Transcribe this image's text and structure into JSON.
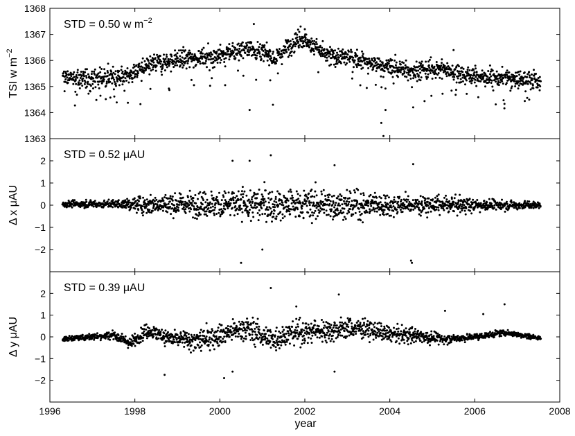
{
  "chart_data": [
    {
      "type": "scatter",
      "ylabel_main": "TSI  w m",
      "ylabel_sup": "−2",
      "annotation_main": "STD = 0.50 w m",
      "annotation_sup": "−2",
      "xlim": [
        1996,
        2008
      ],
      "ylim": [
        1363,
        1368
      ],
      "yticks": [
        "1363",
        "1364",
        "1365",
        "1366",
        "1367",
        "1368"
      ],
      "trend": {
        "x": [
          1996.3,
          1997.0,
          1997.8,
          1998.5,
          1999.3,
          2000.0,
          2000.7,
          2001.3,
          2001.9,
          2002.5,
          2003.1,
          2003.8,
          2004.5,
          2005.2,
          2006.0,
          2006.8,
          2007.55
        ],
        "y": [
          1365.3,
          1365.3,
          1365.4,
          1365.9,
          1366.1,
          1366.2,
          1366.5,
          1366.1,
          1366.9,
          1366.2,
          1366.1,
          1365.8,
          1365.6,
          1365.7,
          1365.4,
          1365.3,
          1365.2
        ]
      },
      "noise": 0.3,
      "dips": [
        [
          2000.7,
          1364.1
        ],
        [
          2001.25,
          1364.3
        ],
        [
          2003.8,
          1363.6
        ],
        [
          2003.85,
          1363.1
        ],
        [
          2004.55,
          1364.2
        ],
        [
          2003.9,
          1364.1
        ]
      ],
      "highs": [
        [
          2000.8,
          1367.4
        ],
        [
          2001.9,
          1367.3
        ],
        [
          2002.0,
          1367.2
        ],
        [
          2005.5,
          1366.4
        ]
      ]
    },
    {
      "type": "scatter",
      "ylabel_main": "Δ x  μAU",
      "annotation_main": "STD = 0.52 μAU",
      "xlim": [
        1996,
        2008
      ],
      "ylim": [
        -3,
        3
      ],
      "yticks": [
        "−2",
        "−1",
        "0",
        "1",
        "2"
      ],
      "yticks_values": [
        -2,
        -1,
        0,
        1,
        2
      ],
      "trend": {
        "x": [
          1996.3,
          2007.55
        ],
        "y": [
          0.05,
          0.0
        ]
      },
      "spread": {
        "x": [
          1996.3,
          1997.7,
          1998.2,
          1999.5,
          2000.5,
          2001.5,
          2002.5,
          2003.5,
          2004.5,
          2005.5,
          2006.5,
          2007.55
        ],
        "y": [
          0.12,
          0.15,
          0.35,
          0.45,
          0.65,
          0.6,
          0.55,
          0.5,
          0.35,
          0.3,
          0.2,
          0.12
        ]
      },
      "highs": [
        [
          2000.3,
          2.0
        ],
        [
          2000.7,
          2.0
        ],
        [
          2001.2,
          2.25
        ],
        [
          2004.55,
          1.85
        ],
        [
          2002.7,
          1.8
        ]
      ],
      "dips": [
        [
          2000.5,
          -2.6
        ],
        [
          2004.5,
          -2.5
        ],
        [
          2004.52,
          -2.6
        ],
        [
          2001.0,
          -2.0
        ]
      ]
    },
    {
      "type": "scatter",
      "ylabel_main": "Δ y  μAU",
      "annotation_main": "STD = 0.39 μAU",
      "xlim": [
        1996,
        2008
      ],
      "ylim": [
        -3,
        3
      ],
      "yticks": [
        "−2",
        "−1",
        "0",
        "1",
        "2"
      ],
      "yticks_values": [
        -2,
        -1,
        0,
        1,
        2
      ],
      "trend": {
        "x": [
          1996.3,
          1997.5,
          1997.9,
          1998.3,
          1998.9,
          1999.5,
          2000.0,
          2000.6,
          2001.2,
          2001.8,
          2002.5,
          2003.3,
          2004.0,
          2004.5,
          2005.3,
          2006.0,
          2006.7,
          2007.55
        ],
        "y": [
          -0.1,
          0.1,
          -0.3,
          0.3,
          -0.1,
          -0.2,
          0.1,
          0.4,
          -0.1,
          0.2,
          0.3,
          0.4,
          0.1,
          0.1,
          -0.1,
          0.0,
          0.2,
          -0.05
        ]
      },
      "spread": {
        "x": [
          1996.3,
          1997.9,
          1998.5,
          1999.5,
          2000.5,
          2001.5,
          2002.5,
          2003.5,
          2004.5,
          2005.5,
          2006.5,
          2007.55
        ],
        "y": [
          0.08,
          0.2,
          0.3,
          0.45,
          0.45,
          0.45,
          0.45,
          0.35,
          0.3,
          0.15,
          0.12,
          0.1
        ]
      },
      "highs": [
        [
          2001.2,
          2.25
        ],
        [
          2002.8,
          1.95
        ],
        [
          2001.8,
          1.4
        ],
        [
          2005.3,
          1.2
        ],
        [
          2006.2,
          1.05
        ],
        [
          2006.7,
          1.5
        ]
      ],
      "dips": [
        [
          2000.1,
          -1.9
        ],
        [
          2000.3,
          -1.6
        ],
        [
          2002.7,
          -1.6
        ],
        [
          1998.7,
          -1.75
        ]
      ]
    }
  ],
  "shared_x": {
    "xlabel": "year",
    "xticks": [
      "1996",
      "1998",
      "2000",
      "2002",
      "2004",
      "2006",
      "2008"
    ],
    "xticks_values": [
      1996,
      1998,
      2000,
      2002,
      2004,
      2006,
      2008
    ]
  },
  "colors": {
    "points": "#000000",
    "axes": "#000000",
    "background": "#ffffff"
  }
}
